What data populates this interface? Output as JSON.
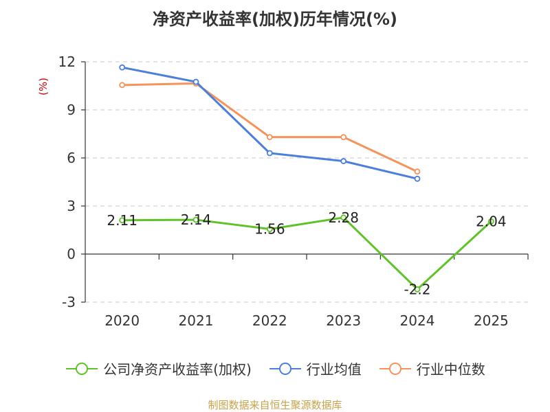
{
  "chart_data": {
    "type": "line",
    "title": "净资产收益率(加权)历年情况(%)",
    "ylabel": "(%)",
    "xlabel": "",
    "categories": [
      "2020",
      "2021",
      "2022",
      "2023",
      "2024",
      "2025"
    ],
    "ylim": [
      -3,
      12
    ],
    "yticks": [
      -3,
      0,
      3,
      6,
      9,
      12
    ],
    "grid": true,
    "legend_position": "bottom",
    "series": [
      {
        "name": "公司净资产收益率(加权)",
        "color": "#5ec326",
        "show_labels": true,
        "values": [
          2.11,
          2.14,
          1.56,
          2.28,
          -2.2,
          2.04
        ],
        "labels": [
          "2.11",
          "2.14",
          "1.56",
          "2.28",
          "-2.2",
          "2.04"
        ]
      },
      {
        "name": "行业均值",
        "color": "#4a7fdb",
        "show_labels": false,
        "values": [
          11.65,
          10.75,
          6.3,
          5.8,
          4.7,
          null
        ]
      },
      {
        "name": "行业中位数",
        "color": "#f5935a",
        "show_labels": false,
        "values": [
          10.55,
          10.65,
          7.3,
          7.3,
          5.15,
          null
        ]
      }
    ]
  },
  "footer": {
    "source": "制图数据来自恒生聚源数据库"
  }
}
